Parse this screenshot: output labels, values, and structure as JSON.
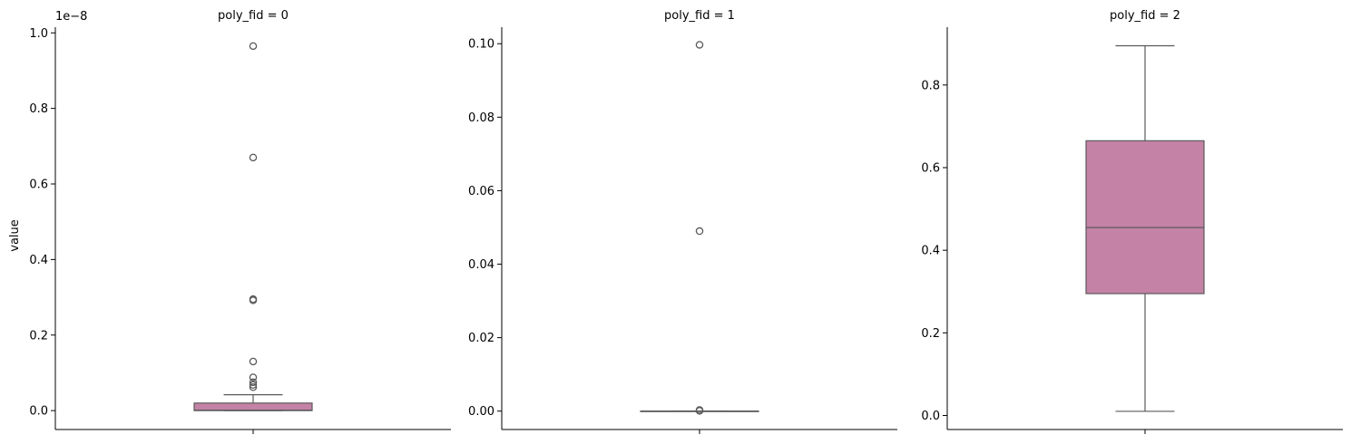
{
  "chart_data": {
    "type": "box",
    "ylabel": "value",
    "colors": {
      "box_fill": "#c482a6",
      "line": "#5a5a5a",
      "axis": "#000000"
    },
    "facets": [
      {
        "title": "poly_fid = 0",
        "offset_text": "1e−8",
        "scale": 1e-08,
        "ylim": [
          -0.05,
          1.015
        ],
        "yticks": [
          0.0,
          0.2,
          0.4,
          0.6,
          0.8,
          1.0
        ],
        "ytick_labels": [
          "0.0",
          "0.2",
          "0.4",
          "0.6",
          "0.8",
          "1.0"
        ],
        "box": {
          "whisker_low": 0.0,
          "q1": 0.0,
          "median": 0.001,
          "q3": 0.02,
          "whisker_high": 0.042
        },
        "outliers": [
          0.965,
          0.67,
          0.295,
          0.292,
          0.13,
          0.088,
          0.075,
          0.068,
          0.062
        ]
      },
      {
        "title": "poly_fid = 1",
        "offset_text": "",
        "scale": 1,
        "ylim": [
          -0.005,
          0.1045
        ],
        "yticks": [
          0.0,
          0.02,
          0.04,
          0.06,
          0.08,
          0.1
        ],
        "ytick_labels": [
          "0.00",
          "0.02",
          "0.04",
          "0.06",
          "0.08",
          "0.10"
        ],
        "box": {
          "whisker_low": 0.0,
          "q1": 0.0,
          "median": 0.0,
          "q3": 0.0,
          "whisker_high": 0.0
        },
        "outliers": [
          0.0997,
          0.049,
          0.0003,
          0.0001
        ]
      },
      {
        "title": "poly_fid = 2",
        "offset_text": "",
        "scale": 1,
        "ylim": [
          -0.034,
          0.94
        ],
        "yticks": [
          0.0,
          0.2,
          0.4,
          0.6,
          0.8
        ],
        "ytick_labels": [
          "0.0",
          "0.2",
          "0.4",
          "0.6",
          "0.8"
        ],
        "box": {
          "whisker_low": 0.01,
          "q1": 0.295,
          "median": 0.455,
          "q3": 0.665,
          "whisker_high": 0.895
        },
        "outliers": []
      }
    ]
  }
}
